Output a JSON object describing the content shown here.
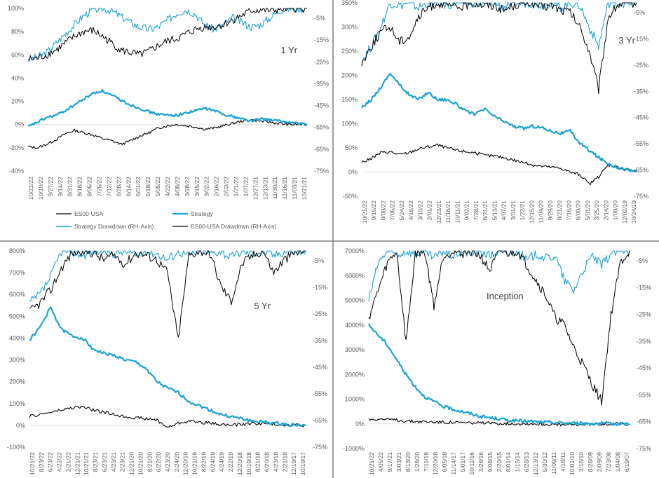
{
  "colors": {
    "strategy": "#1aa3d6",
    "benchmark": "#000000",
    "axis_text": "#595959",
    "gridline": "#d9d9d9",
    "divider": "#7f7f7f"
  },
  "chart_data": [
    {
      "type": "line",
      "title": "1 Yr",
      "y_left": {
        "ticks": [
          "100%",
          "80%",
          "60%",
          "40%",
          "20%",
          "0%",
          "-20%",
          "-40%"
        ],
        "range": [
          -40,
          100
        ]
      },
      "y_right": {
        "ticks": [
          "-5%",
          "-15%",
          "-25%",
          "-35%",
          "-45%",
          "-55%",
          "-65%",
          "-75%"
        ]
      },
      "x_ticks": [
        "10/21/22",
        "10/10/22",
        "9/27/22",
        "9/14/22",
        "8/31/22",
        "8/18/22",
        "8/05/22",
        "7/25/22",
        "7/12/22",
        "6/28/22",
        "6/14/22",
        "6/01/22",
        "5/18/22",
        "5/05/22",
        "4/22/22",
        "4/08/22",
        "3/28/22",
        "3/15/22",
        "3/02/22",
        "2/16/22",
        "2/03/22",
        "1/21/22",
        "1/07/22",
        "12/27/21",
        "12/13/21",
        "11/30/21",
        "11/16/21",
        "11/03/21",
        "10/21/21"
      ],
      "legend": [
        "ES00-USA",
        "Strategy",
        "Strategy Drawdown (RH-Axis)",
        "ES00-USA Drawdown (RH-Axis)"
      ],
      "series": [
        {
          "name": "Strategy",
          "axis": "left",
          "values": [
            -2,
            2,
            6,
            8,
            12,
            17,
            22,
            27,
            29,
            25,
            21,
            17,
            14,
            11,
            9,
            8,
            8,
            10,
            12,
            14,
            12,
            9,
            7,
            5,
            3,
            5,
            4,
            3,
            2,
            1,
            0
          ]
        },
        {
          "name": "ES00-USA",
          "axis": "left",
          "values": [
            -19,
            -20,
            -17,
            -13,
            -8,
            -5,
            -7,
            -9,
            -12,
            -14,
            -17,
            -14,
            -10,
            -7,
            -3,
            -1,
            0,
            -1,
            -2,
            -4,
            -3,
            -1,
            1,
            3,
            4,
            3,
            2,
            1,
            0,
            0,
            0
          ]
        },
        {
          "name": "Strategy Drawdown (RH-Axis)",
          "axis": "left",
          "values": [
            56,
            58,
            62,
            70,
            78,
            86,
            94,
            99,
            100,
            98,
            93,
            88,
            84,
            82,
            84,
            90,
            96,
            99,
            95,
            86,
            82,
            86,
            92,
            88,
            84,
            86,
            92,
            98,
            100,
            100,
            100
          ]
        },
        {
          "name": "ES00-USA Drawdown (RH-Axis)",
          "axis": "left",
          "values": [
            56,
            57,
            60,
            64,
            70,
            76,
            80,
            81,
            76,
            70,
            64,
            62,
            60,
            63,
            68,
            72,
            74,
            78,
            82,
            84,
            84,
            86,
            90,
            94,
            98,
            99,
            98,
            99,
            100,
            100,
            100
          ]
        }
      ]
    },
    {
      "type": "line",
      "title": "3 Yr",
      "y_left": {
        "ticks": [
          "350%",
          "300%",
          "250%",
          "200%",
          "150%",
          "100%",
          "50%",
          "0%",
          "-50%"
        ],
        "range": [
          -50,
          350
        ]
      },
      "y_right": {
        "ticks": [
          "-5%",
          "-15%",
          "-25%",
          "-35%",
          "-45%",
          "-55%",
          "-65%",
          "-75%"
        ]
      },
      "x_ticks": [
        "10/21/22",
        "9/15/22",
        "8/09/22",
        "7/05/22",
        "5/24/22",
        "4/18/22",
        "3/10/22",
        "2/01/22",
        "12/23/21",
        "11/16/21",
        "10/11/21",
        "9/02/21",
        "7/28/21",
        "6/21/21",
        "5/13/21",
        "4/07/21",
        "3/01/21",
        "1/22/21",
        "12/15/20",
        "11/04/20",
        "9/29/20",
        "8/21/20",
        "7/16/20",
        "6/09/20",
        "5/01/20",
        "3/25/20",
        "2/14/20",
        "1/09/20",
        "12/02/19",
        "10/24/19"
      ],
      "series": [
        {
          "name": "Strategy",
          "axis": "left",
          "values": [
            132,
            150,
            175,
            205,
            180,
            160,
            150,
            165,
            150,
            150,
            140,
            125,
            120,
            130,
            115,
            105,
            95,
            90,
            95,
            92,
            85,
            80,
            85,
            60,
            45,
            30,
            18,
            10,
            5,
            1
          ]
        },
        {
          "name": "ES00-USA",
          "axis": "left",
          "values": [
            20,
            28,
            40,
            42,
            36,
            40,
            48,
            52,
            56,
            50,
            45,
            42,
            40,
            34,
            33,
            30,
            25,
            20,
            15,
            12,
            10,
            8,
            0,
            -5,
            -25,
            -10,
            15,
            10,
            5,
            1
          ]
        },
        {
          "name": "Strategy Drawdown (RH-Axis)",
          "axis": "left",
          "values": [
            230,
            260,
            300,
            350,
            345,
            350,
            340,
            350,
            350,
            345,
            350,
            350,
            350,
            345,
            350,
            340,
            350,
            350,
            350,
            345,
            350,
            340,
            350,
            345,
            300,
            260,
            350,
            350,
            350,
            350
          ]
        },
        {
          "name": "ES00-USA Drawdown (RH-Axis)",
          "axis": "left",
          "values": [
            225,
            260,
            290,
            300,
            270,
            280,
            320,
            340,
            350,
            345,
            340,
            345,
            350,
            345,
            345,
            335,
            345,
            350,
            350,
            340,
            345,
            335,
            330,
            300,
            250,
            170,
            320,
            345,
            350,
            350
          ]
        }
      ]
    },
    {
      "type": "line",
      "title": "5 Yr",
      "y_left": {
        "ticks": [
          "800%",
          "700%",
          "600%",
          "500%",
          "400%",
          "300%",
          "200%",
          "100%",
          "0%",
          "-100%"
        ],
        "range": [
          -100,
          800
        ]
      },
      "y_right": {
        "ticks": [
          "-5%",
          "-15%",
          "-25%",
          "-35%",
          "-45%",
          "-55%",
          "-65%",
          "-75%"
        ]
      },
      "x_ticks": [
        "10/21/22",
        "8/23/22",
        "6/23/22",
        "4/22/22",
        "2/21/22",
        "12/21/21",
        "10/21/21",
        "8/23/21",
        "6/23/21",
        "4/23/21",
        "2/23/21",
        "12/21/20",
        "10/21/20",
        "8/21/20",
        "6/22/20",
        "4/23/20",
        "2/24/20",
        "12/20/19",
        "10/21/19",
        "8/22/19",
        "6/24/19",
        "4/24/19",
        "2/22/19",
        "12/20/18",
        "10/19/18",
        "8/21/18",
        "6/20/18",
        "4/23/18",
        "2/21/18",
        "12/19/17",
        "10/19/17"
      ],
      "series": [
        {
          "name": "Strategy",
          "axis": "left",
          "values": [
            390,
            450,
            540,
            440,
            410,
            400,
            350,
            330,
            320,
            300,
            290,
            260,
            200,
            170,
            150,
            110,
            90,
            70,
            50,
            40,
            30,
            20,
            15,
            10,
            5,
            2,
            0
          ]
        },
        {
          "name": "ES00-USA",
          "axis": "left",
          "values": [
            40,
            50,
            60,
            70,
            80,
            85,
            70,
            60,
            50,
            40,
            35,
            30,
            25,
            -10,
            10,
            20,
            15,
            10,
            5,
            0,
            5,
            10,
            8,
            5,
            3,
            2,
            0
          ]
        },
        {
          "name": "Strategy Drawdown (RH-Axis)",
          "axis": "left",
          "values": [
            560,
            600,
            680,
            800,
            800,
            780,
            800,
            800,
            790,
            800,
            780,
            800,
            790,
            760,
            800,
            780,
            800,
            790,
            800,
            770,
            800,
            790,
            800,
            780,
            800,
            800,
            800
          ]
        },
        {
          "name": "ES00-USA Drawdown (RH-Axis)",
          "axis": "left",
          "values": [
            520,
            560,
            620,
            720,
            790,
            800,
            790,
            760,
            780,
            740,
            790,
            780,
            760,
            700,
            390,
            780,
            800,
            790,
            640,
            570,
            740,
            780,
            800,
            700,
            760,
            790,
            800
          ]
        }
      ]
    },
    {
      "type": "line",
      "title": "Inception",
      "y_left": {
        "ticks": [
          "7000%",
          "6000%",
          "5000%",
          "4000%",
          "3000%",
          "2000%",
          "1000%",
          "0%",
          "-1000%"
        ],
        "range": [
          -1000,
          7000
        ]
      },
      "y_right": {
        "ticks": [
          "-5%",
          "-15%",
          "-25%",
          "-35%",
          "-45%",
          "-55%",
          "-65%",
          "-75%"
        ]
      },
      "x_ticks": [
        "10/21/22",
        "4/05/22",
        "9/17/21",
        "3/03/21",
        "8/13/20",
        "1/28/20",
        "7/11/19",
        "12/20/18",
        "6/05/18",
        "11/14/17",
        "5/01/17",
        "10/11/16",
        "3/28/16",
        "9/08/15",
        "2/20/15",
        "8/01/14",
        "1/15/14",
        "6/28/13",
        "12/13/12",
        "5/30/12",
        "11/09/11",
        "4/18/11",
        "10/01/10",
        "3/16/10",
        "8/26/09",
        "2/09/09",
        "7/23/08",
        "1/04/08",
        "6/19/07"
      ],
      "series": [
        {
          "name": "Strategy",
          "axis": "left",
          "values": [
            4000,
            3600,
            3200,
            2600,
            2000,
            1500,
            1100,
            900,
            700,
            600,
            500,
            400,
            300,
            250,
            200,
            150,
            120,
            100,
            80,
            60,
            50,
            40,
            30,
            20,
            15,
            10,
            5,
            2,
            0
          ]
        },
        {
          "name": "ES00-USA",
          "axis": "left",
          "values": [
            180,
            200,
            180,
            150,
            120,
            100,
            90,
            80,
            70,
            60,
            50,
            40,
            30,
            25,
            20,
            15,
            10,
            5,
            0,
            -20,
            -40,
            -50,
            -30,
            -20,
            -10,
            0,
            5,
            2,
            0
          ]
        },
        {
          "name": "Strategy Drawdown (RH-Axis)",
          "axis": "left",
          "values": [
            5000,
            6500,
            7000,
            6800,
            7000,
            6900,
            7000,
            6700,
            7000,
            6800,
            7000,
            6900,
            7000,
            6800,
            7000,
            6900,
            7000,
            6600,
            6900,
            6700,
            6800,
            5800,
            5400,
            6200,
            6800,
            6400,
            6900,
            7000,
            7000
          ]
        },
        {
          "name": "ES00-USA Drawdown (RH-Axis)",
          "axis": "left",
          "values": [
            4300,
            5400,
            6500,
            7000,
            3300,
            6900,
            7000,
            4800,
            6800,
            7000,
            6900,
            7000,
            6800,
            6200,
            7000,
            6900,
            7000,
            6400,
            5800,
            5200,
            4300,
            4000,
            3100,
            2400,
            1600,
            900,
            4400,
            6500,
            7000
          ]
        }
      ]
    }
  ]
}
